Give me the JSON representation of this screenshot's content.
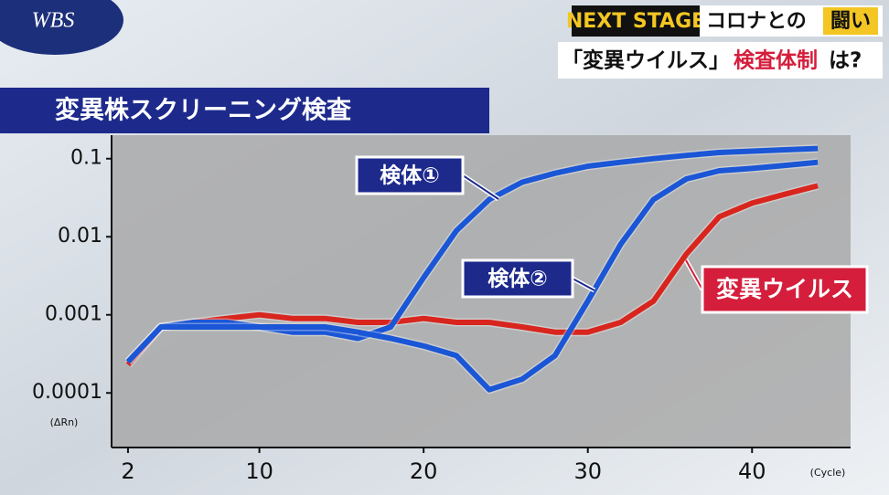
{
  "header": {
    "logo": "WBS",
    "badge": "NEXT STAGE",
    "topic": "コロナとの",
    "topic_highlight": "闘い",
    "subtitle_quote": "「変異ウイルス」",
    "subtitle_red": "検査体制",
    "subtitle_end": "は?"
  },
  "chart_data": {
    "type": "line",
    "title": "変異株スクリーニング検査",
    "y_label": "(ΔRn)",
    "x_label": "(Cycle)",
    "x": [
      2,
      4,
      6,
      8,
      10,
      12,
      14,
      16,
      18,
      20,
      22,
      24,
      26,
      28,
      30,
      32,
      34,
      36,
      38,
      40,
      42,
      44
    ],
    "series": [
      {
        "name": "変異ウイルス",
        "color": "#d8261e",
        "values": [
          0.00023,
          0.0007,
          0.0008,
          0.0009,
          0.001,
          0.0009,
          0.0009,
          0.0008,
          0.0008,
          0.0009,
          0.0008,
          0.0008,
          0.0007,
          0.0006,
          0.0006,
          0.0008,
          0.0015,
          0.006,
          0.018,
          0.027,
          0.035,
          0.045
        ]
      },
      {
        "name": "検体①",
        "color": "#1a56d6",
        "values": [
          0.00025,
          0.0007,
          0.0008,
          0.0008,
          0.0007,
          0.0006,
          0.0006,
          0.0005,
          0.0007,
          0.003,
          0.012,
          0.03,
          0.05,
          0.065,
          0.08,
          0.09,
          0.1,
          0.11,
          0.12,
          0.125,
          0.13,
          0.135
        ]
      },
      {
        "name": "検体②",
        "color": "#1a56d6",
        "values": [
          0.00025,
          0.0007,
          0.0007,
          0.0007,
          0.0007,
          0.0007,
          0.0007,
          0.0006,
          0.0005,
          0.0004,
          0.0003,
          0.00011,
          0.00015,
          0.0003,
          0.0015,
          0.008,
          0.03,
          0.055,
          0.07,
          0.075,
          0.082,
          0.09
        ]
      }
    ],
    "xlim": [
      1,
      46
    ],
    "xticks": [
      2,
      10,
      20,
      30,
      40
    ],
    "ylim": [
      2e-05,
      0.2
    ],
    "yticks": [
      0.1,
      0.01,
      0.001,
      0.0001
    ],
    "log_y": true,
    "grid": false
  }
}
